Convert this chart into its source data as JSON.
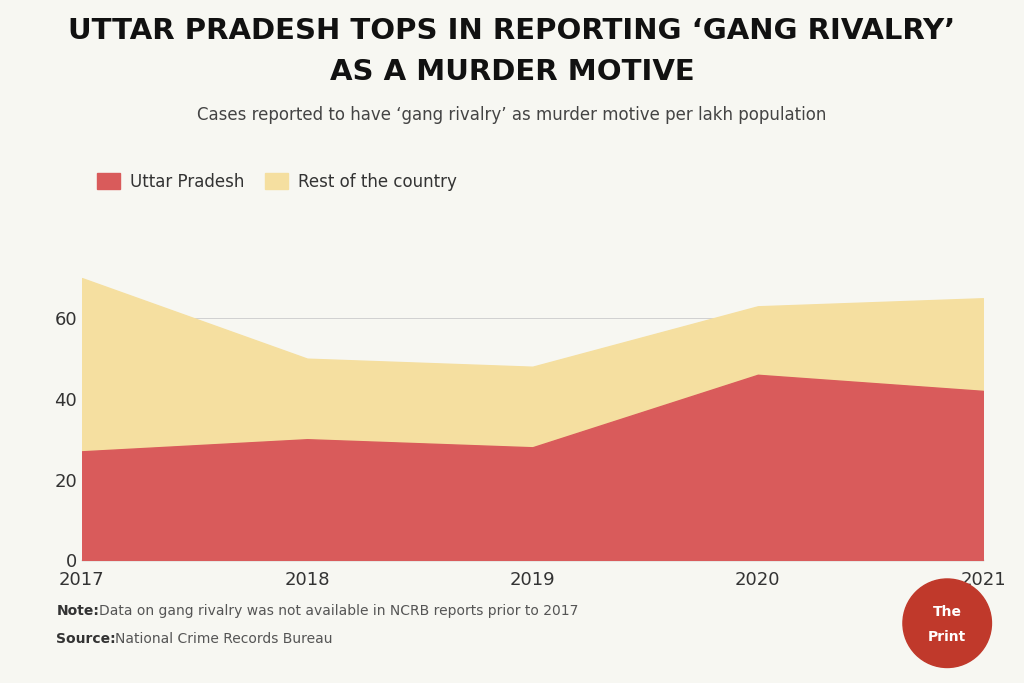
{
  "title_line1": "UTTAR PRADESH TOPS IN REPORTING ‘GANG RIVALRY’",
  "title_line2": "AS A MURDER MOTIVE",
  "subtitle": "Cases reported to have ‘gang rivalry’ as murder motive per lakh population",
  "years": [
    2017,
    2018,
    2019,
    2020,
    2021
  ],
  "up_values": [
    27,
    30,
    28,
    46,
    42
  ],
  "total_values": [
    70,
    50,
    48,
    63,
    65
  ],
  "up_color": "#D95B5B",
  "rest_color": "#F5DFA0",
  "legend_up": "Uttar Pradesh",
  "legend_rest": "Rest of the country",
  "note_bold": "Note:",
  "note_text": "Data on gang rivalry was not available in NCRB reports prior to 2017",
  "source_bold": "Source:",
  "source_text": "National Crime Records Bureau",
  "background_color": "#F7F7F2",
  "yticks": [
    0,
    20,
    40,
    60
  ],
  "ylim": [
    0,
    78
  ],
  "logo_color": "#C0392B"
}
